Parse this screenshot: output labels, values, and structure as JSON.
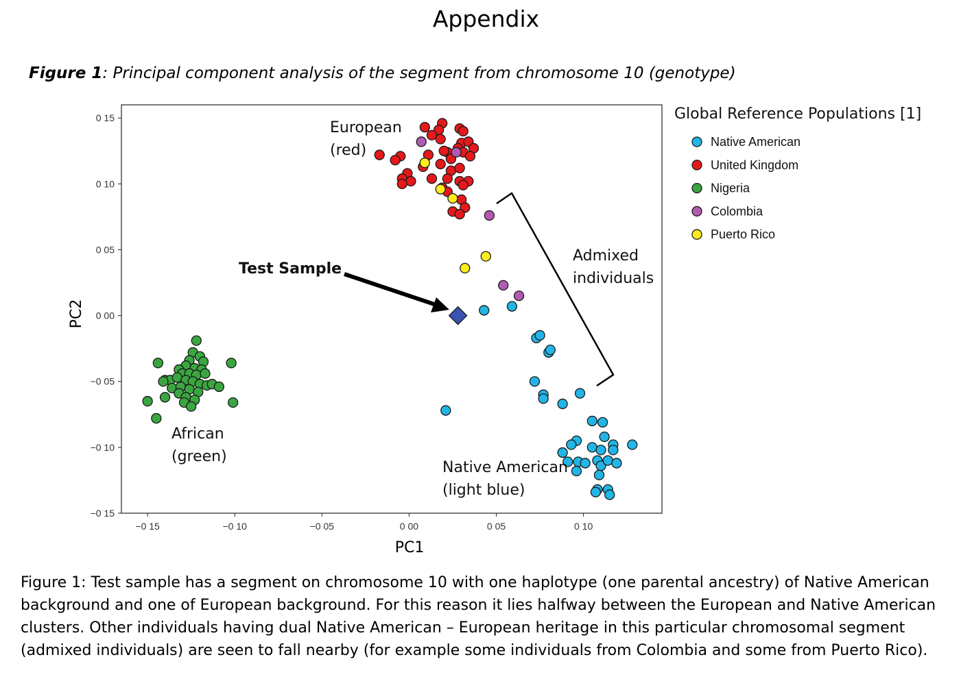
{
  "page": {
    "title": "Appendix",
    "figure_label": "Figure 1",
    "figure_heading_rest": ": Principal component analysis of the segment from chromosome 10 (genotype)",
    "caption": "Figure 1: Test sample has a segment on chromosome 10 with one haplotype (one parental ancestry) of Native American background and one of European background. For this reason it lies halfway between the European and Native American clusters. Other individuals having dual Native American – European heritage in this particular chromosomal segment (admixed individuals) are seen to fall nearby (for example some individuals from Colombia and some from Puerto Rico)."
  },
  "chart_data": {
    "type": "scatter",
    "xlabel": "PC1",
    "ylabel": "PC2",
    "xlim": [
      -0.165,
      0.145
    ],
    "ylim": [
      -0.15,
      0.16
    ],
    "xticks": [
      -0.15,
      -0.1,
      -0.05,
      0.0,
      0.05,
      0.1
    ],
    "xtick_labels": [
      "−0 15",
      "−0 10",
      "−0 05",
      "0 00",
      "0 05",
      "0 10"
    ],
    "yticks": [
      0.15,
      0.1,
      0.05,
      0.0,
      -0.05,
      -0.1,
      -0.15
    ],
    "ytick_labels": [
      "0 15",
      "0 10",
      "0 05",
      "0 00",
      "−0 05",
      "−0 10",
      "−0 15"
    ],
    "grid": false,
    "legend": {
      "title": "Global Reference Populations [1]",
      "position": "right-outside"
    },
    "series": [
      {
        "name": "Native American",
        "color": "#22b5e6",
        "points": [
          [
            0.043,
            0.004
          ],
          [
            0.059,
            0.007
          ],
          [
            0.073,
            -0.017
          ],
          [
            0.075,
            -0.015
          ],
          [
            0.08,
            -0.028
          ],
          [
            0.081,
            -0.026
          ],
          [
            0.072,
            -0.05
          ],
          [
            0.077,
            -0.06
          ],
          [
            0.077,
            -0.063
          ],
          [
            0.088,
            -0.067
          ],
          [
            0.098,
            -0.059
          ],
          [
            0.021,
            -0.072
          ],
          [
            0.105,
            -0.08
          ],
          [
            0.111,
            -0.081
          ],
          [
            0.096,
            -0.095
          ],
          [
            0.093,
            -0.098
          ],
          [
            0.088,
            -0.104
          ],
          [
            0.105,
            -0.1
          ],
          [
            0.11,
            -0.102
          ],
          [
            0.112,
            -0.092
          ],
          [
            0.117,
            -0.098
          ],
          [
            0.117,
            -0.102
          ],
          [
            0.128,
            -0.098
          ],
          [
            0.091,
            -0.111
          ],
          [
            0.097,
            -0.111
          ],
          [
            0.101,
            -0.112
          ],
          [
            0.108,
            -0.11
          ],
          [
            0.11,
            -0.114
          ],
          [
            0.114,
            -0.11
          ],
          [
            0.119,
            -0.112
          ],
          [
            0.096,
            -0.118
          ],
          [
            0.109,
            -0.121
          ],
          [
            0.108,
            -0.132
          ],
          [
            0.114,
            -0.132
          ],
          [
            0.107,
            -0.134
          ],
          [
            0.115,
            -0.136
          ]
        ]
      },
      {
        "name": "United Kingdom",
        "color": "#e5191c",
        "points": [
          [
            0.009,
            0.143
          ],
          [
            0.019,
            0.146
          ],
          [
            0.017,
            0.141
          ],
          [
            0.029,
            0.142
          ],
          [
            0.031,
            0.14
          ],
          [
            0.013,
            0.137
          ],
          [
            0.018,
            0.134
          ],
          [
            0.03,
            0.131
          ],
          [
            0.034,
            0.132
          ],
          [
            0.037,
            0.127
          ],
          [
            0.022,
            0.124
          ],
          [
            0.028,
            0.127
          ],
          [
            0.031,
            0.124
          ],
          [
            0.02,
            0.125
          ],
          [
            -0.017,
            0.122
          ],
          [
            -0.005,
            0.121
          ],
          [
            0.011,
            0.122
          ],
          [
            0.024,
            0.119
          ],
          [
            0.035,
            0.121
          ],
          [
            0.018,
            0.115
          ],
          [
            -0.008,
            0.118
          ],
          [
            0.008,
            0.113
          ],
          [
            0.024,
            0.11
          ],
          [
            0.029,
            0.112
          ],
          [
            -0.001,
            0.108
          ],
          [
            -0.004,
            0.104
          ],
          [
            0.001,
            0.102
          ],
          [
            0.013,
            0.104
          ],
          [
            -0.004,
            0.1
          ],
          [
            0.022,
            0.104
          ],
          [
            0.029,
            0.102
          ],
          [
            0.019,
            0.097
          ],
          [
            0.034,
            0.102
          ],
          [
            0.031,
            0.099
          ],
          [
            0.019,
            0.097
          ],
          [
            0.022,
            0.094
          ],
          [
            0.03,
            0.088
          ],
          [
            0.032,
            0.082
          ],
          [
            0.025,
            0.079
          ],
          [
            0.029,
            0.077
          ]
        ]
      },
      {
        "name": "Nigeria",
        "color": "#3aa640",
        "points": [
          [
            -0.122,
            -0.019
          ],
          [
            -0.124,
            -0.028
          ],
          [
            -0.12,
            -0.031
          ],
          [
            -0.118,
            -0.035
          ],
          [
            -0.102,
            -0.036
          ],
          [
            -0.126,
            -0.034
          ],
          [
            -0.144,
            -0.036
          ],
          [
            -0.128,
            -0.038
          ],
          [
            -0.123,
            -0.04
          ],
          [
            -0.119,
            -0.041
          ],
          [
            -0.132,
            -0.041
          ],
          [
            -0.13,
            -0.044
          ],
          [
            -0.126,
            -0.044
          ],
          [
            -0.122,
            -0.045
          ],
          [
            -0.117,
            -0.044
          ],
          [
            -0.14,
            -0.049
          ],
          [
            -0.137,
            -0.049
          ],
          [
            -0.133,
            -0.047
          ],
          [
            -0.128,
            -0.049
          ],
          [
            -0.124,
            -0.05
          ],
          [
            -0.12,
            -0.052
          ],
          [
            -0.116,
            -0.053
          ],
          [
            -0.113,
            -0.052
          ],
          [
            -0.109,
            -0.054
          ],
          [
            -0.141,
            -0.05
          ],
          [
            -0.136,
            -0.055
          ],
          [
            -0.131,
            -0.054
          ],
          [
            -0.126,
            -0.056
          ],
          [
            -0.121,
            -0.058
          ],
          [
            -0.132,
            -0.059
          ],
          [
            -0.128,
            -0.062
          ],
          [
            -0.123,
            -0.064
          ],
          [
            -0.14,
            -0.062
          ],
          [
            -0.15,
            -0.065
          ],
          [
            -0.101,
            -0.066
          ],
          [
            -0.129,
            -0.066
          ],
          [
            -0.125,
            -0.069
          ],
          [
            -0.145,
            -0.078
          ]
        ]
      },
      {
        "name": "Colombia",
        "color": "#b25ab2",
        "points": [
          [
            0.007,
            0.132
          ],
          [
            0.027,
            0.124
          ],
          [
            0.046,
            0.076
          ],
          [
            0.054,
            0.023
          ],
          [
            0.063,
            0.015
          ]
        ]
      },
      {
        "name": "Puerto Rico",
        "color": "#ffed1c",
        "points": [
          [
            0.009,
            0.116
          ],
          [
            0.018,
            0.096
          ],
          [
            0.025,
            0.089
          ],
          [
            0.032,
            0.036
          ],
          [
            0.044,
            0.045
          ]
        ]
      }
    ],
    "test_sample": {
      "label": "Test Sample",
      "point": [
        0.028,
        0.0
      ],
      "color": "#3a52b0"
    },
    "annotations": [
      {
        "lines": [
          "European",
          "(red)"
        ]
      },
      {
        "lines": [
          "African",
          "(green)"
        ]
      },
      {
        "lines": [
          "Native American",
          "(light blue)"
        ]
      },
      {
        "lines": [
          "Admixed",
          "individuals"
        ]
      },
      {
        "lines": [
          "Test Sample"
        ]
      }
    ]
  }
}
